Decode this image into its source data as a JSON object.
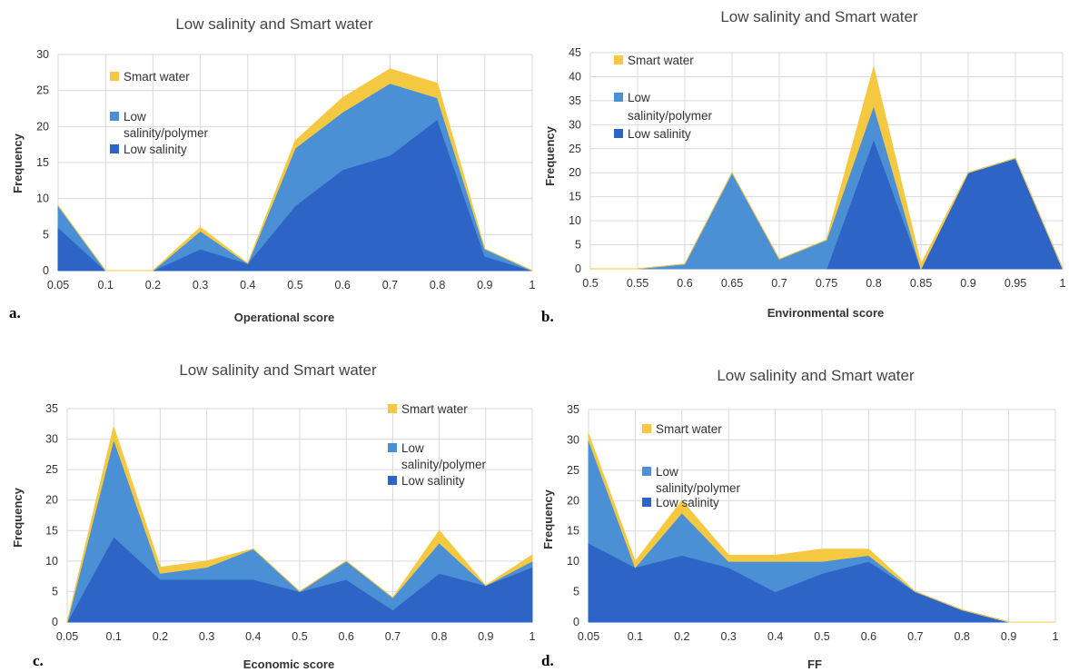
{
  "colors": {
    "smart_water": "#F5C842",
    "low_salinity_polymer": "#4B8FD4",
    "low_salinity": "#2E64C5",
    "grid": "#D9D9D9",
    "axis": "#BFBFBF"
  },
  "chart_data": [
    {
      "type": "area",
      "stacked": true,
      "panel": "a.",
      "title": "Low salinity and Smart water",
      "xlabel": "Operational score",
      "ylabel": "Frequency",
      "categories": [
        "0.05",
        "0.1",
        "0.2",
        "0.3",
        "0.4",
        "0.5",
        "0.6",
        "0.7",
        "0.8",
        "0.9",
        "1"
      ],
      "ylim": [
        0,
        30
      ],
      "ytick_step": 5,
      "legend_position": "top-left",
      "legend": [
        "Smart water",
        "Low salinity/polymer",
        "Low salinity"
      ],
      "series": [
        {
          "name": "Low salinity",
          "color_key": "low_salinity",
          "values": [
            6,
            0,
            0,
            3,
            1,
            9,
            14,
            16,
            21,
            2,
            0
          ]
        },
        {
          "name": "Low salinity/polymer",
          "color_key": "low_salinity_polymer",
          "values": [
            3,
            0,
            0,
            2.5,
            0,
            8,
            8,
            10,
            3,
            1,
            0
          ]
        },
        {
          "name": "Smart water",
          "color_key": "smart_water",
          "values": [
            0,
            0,
            0,
            0.5,
            0,
            1,
            2,
            2,
            2,
            0,
            0
          ]
        }
      ]
    },
    {
      "type": "area",
      "stacked": true,
      "panel": "b.",
      "title": "Low salinity and Smart water",
      "xlabel": "Environmental score",
      "ylabel": "Frequency",
      "categories": [
        "0.5",
        "0.55",
        "0.6",
        "0.65",
        "0.7",
        "0.75",
        "0.8",
        "0.85",
        "0.9",
        "0.95",
        "1"
      ],
      "ylim": [
        0,
        45
      ],
      "ytick_step": 5,
      "legend_position": "top-left",
      "legend": [
        "Smart water",
        "Low salinity/polymer",
        "Low salinity"
      ],
      "series": [
        {
          "name": "Low salinity",
          "color_key": "low_salinity",
          "values": [
            0,
            0,
            0,
            0,
            0,
            0,
            27,
            0,
            20,
            23,
            0
          ]
        },
        {
          "name": "Low salinity/polymer",
          "color_key": "low_salinity_polymer",
          "values": [
            0,
            0,
            1,
            20,
            2,
            6,
            7,
            0,
            0,
            0,
            0
          ]
        },
        {
          "name": "Smart water",
          "color_key": "smart_water",
          "values": [
            0,
            0,
            0,
            0,
            0,
            0,
            8,
            1,
            0,
            0,
            0
          ]
        }
      ]
    },
    {
      "type": "area",
      "stacked": true,
      "panel": "c.",
      "title": "Low salinity and Smart water",
      "xlabel": "Economic score",
      "ylabel": "Frequency",
      "categories": [
        "0.05",
        "0.1",
        "0.2",
        "0.3",
        "0.4",
        "0.5",
        "0.6",
        "0.7",
        "0.8",
        "0.9",
        "1"
      ],
      "ylim": [
        0,
        35
      ],
      "ytick_step": 5,
      "legend_position": "top-right",
      "legend": [
        "Smart water",
        "Low salinity/polymer",
        "Low salinity"
      ],
      "series": [
        {
          "name": "Low salinity",
          "color_key": "low_salinity",
          "values": [
            0,
            14,
            7,
            7,
            7,
            5,
            7,
            2,
            8,
            6,
            9
          ]
        },
        {
          "name": "Low salinity/polymer",
          "color_key": "low_salinity_polymer",
          "values": [
            0,
            16,
            1,
            2,
            5,
            0,
            3,
            2,
            5,
            0,
            1
          ]
        },
        {
          "name": "Smart water",
          "color_key": "smart_water",
          "values": [
            0,
            2,
            1,
            1,
            0,
            0,
            0,
            0,
            2,
            0,
            1
          ]
        }
      ]
    },
    {
      "type": "area",
      "stacked": true,
      "panel": "d.",
      "title": "Low salinity and Smart water",
      "xlabel": "FF",
      "ylabel": "Frequency",
      "categories": [
        "0.05",
        "0.1",
        "0.2",
        "0.3",
        "0.4",
        "0.5",
        "0.6",
        "0.7",
        "0.8",
        "0.9",
        "1"
      ],
      "ylim": [
        0,
        35
      ],
      "ytick_step": 5,
      "legend_position": "top-right",
      "legend": [
        "Smart water",
        "Low salinity/polymer",
        "Low salinity"
      ],
      "series": [
        {
          "name": "Low salinity",
          "color_key": "low_salinity",
          "values": [
            13,
            9,
            11,
            9,
            5,
            8,
            10,
            5,
            2,
            0,
            0
          ]
        },
        {
          "name": "Low salinity/polymer",
          "color_key": "low_salinity_polymer",
          "values": [
            17,
            0,
            7,
            1,
            5,
            2,
            1,
            0,
            0,
            0,
            0
          ]
        },
        {
          "name": "Smart water",
          "color_key": "smart_water",
          "values": [
            1,
            1,
            2,
            1,
            1,
            2,
            1,
            0,
            0,
            0,
            0
          ]
        }
      ]
    }
  ],
  "legend_labels": {
    "smart_water": "Smart water",
    "low_salinity_polymer_line1": "Low",
    "low_salinity_polymer_line2": "salinity/polymer",
    "low_salinity": "Low salinity"
  }
}
